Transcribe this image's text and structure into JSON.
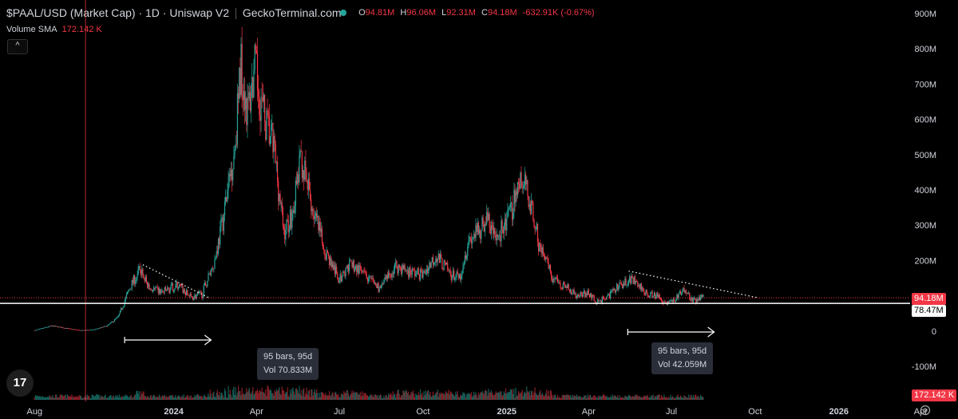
{
  "header": {
    "title": "$PAAL/USD (Market Cap) · 1D · Uniswap V2",
    "source": "GeckoTerminal.com",
    "ohlc": {
      "o_label": "O",
      "o": "94.81M",
      "h_label": "H",
      "h": "96.06M",
      "l_label": "L",
      "l": "92.31M",
      "c_label": "C",
      "c": "94.18M",
      "change": "-632.91K (-0.67%)"
    },
    "volume_sma_label": "Volume SMA",
    "volume_sma_value": "172.142 K",
    "collapse_glyph": "^"
  },
  "price_tags": {
    "last_price": "94.18M",
    "horizontal_line": "78.47M",
    "volume_sma": "172.142 K"
  },
  "measurements": [
    {
      "bars": "95 bars, 95d",
      "vol": "Vol 70.833M"
    },
    {
      "bars": "95 bars, 95d",
      "vol": "Vol 42.059M"
    }
  ],
  "logo": "17",
  "icons": {
    "settings": "gear-icon",
    "logo": "tradingview-logo-icon"
  },
  "colors": {
    "up": "#26a69a",
    "down": "#f23645",
    "background": "#000000",
    "text": "#d1d4dc"
  },
  "chart_data": {
    "type": "candlestick",
    "series_name": "$PAAL/USD (Market Cap)",
    "interval": "1D",
    "y_unit": "USD",
    "ylim": [
      -100000000,
      900000000
    ],
    "y_ticks": [
      {
        "value": 900000000,
        "label": "900M"
      },
      {
        "value": 800000000,
        "label": "800M"
      },
      {
        "value": 700000000,
        "label": "700M"
      },
      {
        "value": 600000000,
        "label": "600M"
      },
      {
        "value": 500000000,
        "label": "500M"
      },
      {
        "value": 400000000,
        "label": "400M"
      },
      {
        "value": 300000000,
        "label": "300M"
      },
      {
        "value": 200000000,
        "label": "200M"
      },
      {
        "value": 100000000,
        "label": "100M"
      },
      {
        "value": 0,
        "label": "0"
      },
      {
        "value": -100000000,
        "label": "-100M"
      }
    ],
    "x_ticks": [
      {
        "date": "2023-08-01",
        "label": "Aug"
      },
      {
        "date": "2024-01-01",
        "label": "2024"
      },
      {
        "date": "2024-04-01",
        "label": "Apr"
      },
      {
        "date": "2024-07-01",
        "label": "Jul"
      },
      {
        "date": "2024-10-01",
        "label": "Oct"
      },
      {
        "date": "2025-01-01",
        "label": "2025"
      },
      {
        "date": "2025-04-01",
        "label": "Apr"
      },
      {
        "date": "2025-07-01",
        "label": "Jul"
      },
      {
        "date": "2025-10-01",
        "label": "Oct"
      },
      {
        "date": "2026-01-01",
        "label": "2026"
      },
      {
        "date": "2026-04-01",
        "label": "Apr"
      }
    ],
    "xlim": [
      "2023-06-24",
      "2026-05-12"
    ],
    "price_path_millions": [
      [
        "2023-08-01",
        2
      ],
      [
        "2023-08-20",
        15
      ],
      [
        "2023-09-05",
        8
      ],
      [
        "2023-09-20",
        2
      ],
      [
        "2023-10-05",
        4
      ],
      [
        "2023-10-20",
        15
      ],
      [
        "2023-11-01",
        40
      ],
      [
        "2023-11-15",
        130
      ],
      [
        "2023-11-25",
        175
      ],
      [
        "2023-12-05",
        120
      ],
      [
        "2023-12-20",
        110
      ],
      [
        "2024-01-05",
        130
      ],
      [
        "2024-01-20",
        95
      ],
      [
        "2024-02-01",
        105
      ],
      [
        "2024-02-15",
        200
      ],
      [
        "2024-02-25",
        330
      ],
      [
        "2024-03-08",
        520
      ],
      [
        "2024-03-15",
        760
      ],
      [
        "2024-03-22",
        620
      ],
      [
        "2024-03-30",
        740
      ],
      [
        "2024-04-10",
        600
      ],
      [
        "2024-04-20",
        520
      ],
      [
        "2024-05-01",
        280
      ],
      [
        "2024-05-10",
        330
      ],
      [
        "2024-05-20",
        490
      ],
      [
        "2024-06-01",
        350
      ],
      [
        "2024-06-15",
        230
      ],
      [
        "2024-07-01",
        145
      ],
      [
        "2024-07-15",
        190
      ],
      [
        "2024-08-01",
        150
      ],
      [
        "2024-08-15",
        120
      ],
      [
        "2024-09-01",
        185
      ],
      [
        "2024-09-15",
        170
      ],
      [
        "2024-10-01",
        160
      ],
      [
        "2024-10-15",
        215
      ],
      [
        "2024-11-01",
        160
      ],
      [
        "2024-11-10",
        150
      ],
      [
        "2024-11-20",
        260
      ],
      [
        "2024-12-01",
        280
      ],
      [
        "2024-12-10",
        320
      ],
      [
        "2024-12-20",
        260
      ],
      [
        "2025-01-05",
        330
      ],
      [
        "2025-01-15",
        430
      ],
      [
        "2025-01-25",
        390
      ],
      [
        "2025-02-05",
        250
      ],
      [
        "2025-02-20",
        150
      ],
      [
        "2025-03-05",
        130
      ],
      [
        "2025-03-20",
        100
      ],
      [
        "2025-04-01",
        110
      ],
      [
        "2025-04-10",
        80
      ],
      [
        "2025-04-25",
        105
      ],
      [
        "2025-05-10",
        140
      ],
      [
        "2025-05-20",
        145
      ],
      [
        "2025-06-01",
        110
      ],
      [
        "2025-06-15",
        100
      ],
      [
        "2025-06-25",
        80
      ],
      [
        "2025-07-05",
        90
      ],
      [
        "2025-07-15",
        120
      ],
      [
        "2025-07-25",
        85
      ],
      [
        "2025-08-05",
        94
      ]
    ],
    "last_price": 94180000,
    "horizontal_level": 78470000,
    "trendlines": [
      {
        "from": [
          "2023-11-28",
          188000000
        ],
        "to": [
          "2024-02-08",
          95000000
        ],
        "style": "dotted"
      },
      {
        "from": [
          "2025-05-15",
          170000000
        ],
        "to": [
          "2025-10-03",
          95000000
        ],
        "style": "dotted"
      }
    ],
    "vertical_marker": "2023-09-26",
    "measure_ranges": [
      {
        "from": "2023-11-08",
        "to": "2024-02-11",
        "bars": 95,
        "volume": "70.833M"
      },
      {
        "from": "2025-05-14",
        "to": "2025-08-17",
        "bars": 95,
        "volume": "42.059M"
      }
    ],
    "volume_sma": "172.142 K"
  }
}
